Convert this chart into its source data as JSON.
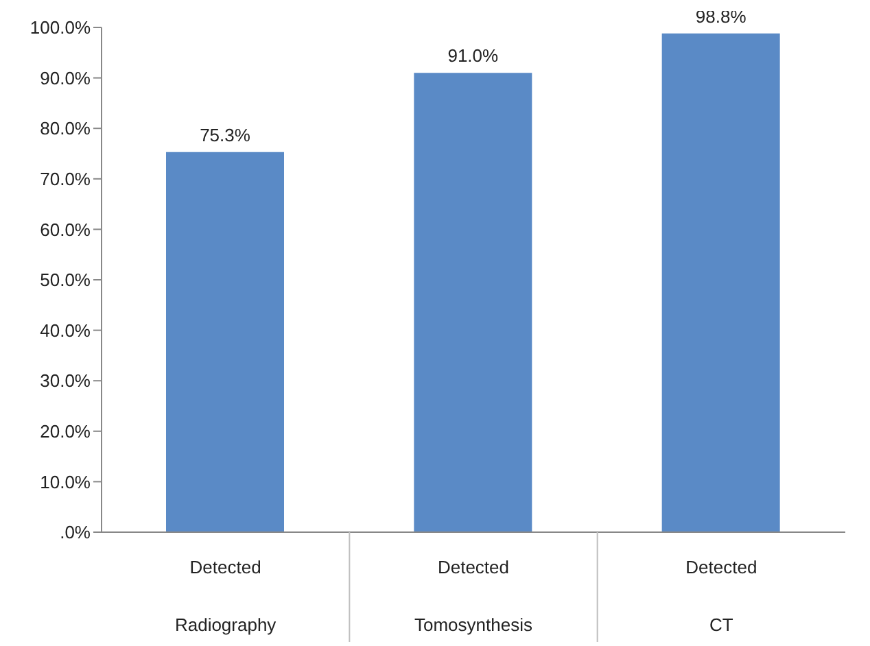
{
  "chart_data": {
    "type": "bar",
    "categories": [
      "Detected\nRadiography",
      "Detected\nTomosynthesis",
      "Detected\nCT"
    ],
    "values": [
      75.3,
      91.0,
      98.8
    ],
    "value_labels": [
      "75.3%",
      "91.0%",
      "98.8%"
    ],
    "color": "#5a8ac6",
    "ylim": [
      0,
      100
    ],
    "yticks": [
      {
        "value": 0,
        "label": ".0%"
      },
      {
        "value": 10,
        "label": "10.0%"
      },
      {
        "value": 20,
        "label": "20.0%"
      },
      {
        "value": 30,
        "label": "30.0%"
      },
      {
        "value": 40,
        "label": "40.0%"
      },
      {
        "value": 50,
        "label": "50.0%"
      },
      {
        "value": 60,
        "label": "60.0%"
      },
      {
        "value": 70,
        "label": "70.0%"
      },
      {
        "value": 80,
        "label": "80.0%"
      },
      {
        "value": 90,
        "label": "90.0%"
      },
      {
        "value": 100,
        "label": "100.0%"
      }
    ],
    "grid": false,
    "legend": false
  }
}
